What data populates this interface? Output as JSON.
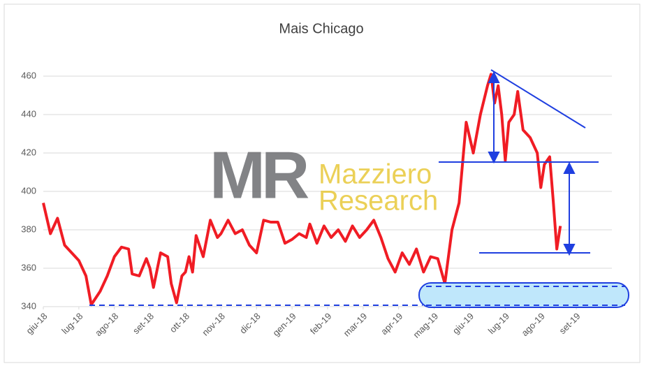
{
  "chart_data": {
    "type": "line",
    "title": "Mais Chicago",
    "watermark": {
      "logo": "MR",
      "line1": "Mazziero",
      "line2": "Research"
    },
    "xlim": [
      0,
      16
    ],
    "xticks": [
      {
        "value": 0,
        "label": "giu-18"
      },
      {
        "value": 1,
        "label": "lug-18"
      },
      {
        "value": 2,
        "label": "ago-18"
      },
      {
        "value": 3,
        "label": "set-18"
      },
      {
        "value": 4,
        "label": "ott-18"
      },
      {
        "value": 5,
        "label": "nov-18"
      },
      {
        "value": 6,
        "label": "dic-18"
      },
      {
        "value": 7,
        "label": "gen-19"
      },
      {
        "value": 8,
        "label": "feb-19"
      },
      {
        "value": 9,
        "label": "mar-19"
      },
      {
        "value": 10,
        "label": "apr-19"
      },
      {
        "value": 11,
        "label": "mag-19"
      },
      {
        "value": 12,
        "label": "giu-19"
      },
      {
        "value": 13,
        "label": "lug-19"
      },
      {
        "value": 14,
        "label": "ago-19"
      },
      {
        "value": 15,
        "label": "set-19"
      }
    ],
    "ylim": [
      340,
      465
    ],
    "yticks": [
      340,
      360,
      380,
      400,
      420,
      440,
      460
    ],
    "grid": true,
    "x": [
      0,
      0.2,
      0.4,
      0.6,
      0.8,
      1.0,
      1.2,
      1.35,
      1.6,
      1.8,
      2.0,
      2.2,
      2.4,
      2.5,
      2.7,
      2.9,
      3.0,
      3.1,
      3.3,
      3.5,
      3.6,
      3.75,
      3.9,
      4.0,
      4.1,
      4.2,
      4.3,
      4.5,
      4.7,
      4.9,
      5.0,
      5.2,
      5.4,
      5.6,
      5.8,
      6.0,
      6.2,
      6.4,
      6.6,
      6.8,
      7.0,
      7.2,
      7.4,
      7.5,
      7.7,
      7.9,
      8.1,
      8.3,
      8.5,
      8.7,
      8.9,
      9.1,
      9.3,
      9.5,
      9.7,
      9.9,
      10.1,
      10.3,
      10.5,
      10.7,
      10.9,
      11.1,
      11.3,
      11.5,
      11.7,
      11.9,
      12.1,
      12.3,
      12.5,
      12.6,
      12.7,
      12.8,
      12.9,
      13.0,
      13.1,
      13.25,
      13.35,
      13.5,
      13.7,
      13.9,
      14.0,
      14.1,
      14.25,
      14.35,
      14.45,
      14.55
    ],
    "series": [
      {
        "name": "Mais Chicago",
        "color": "#f01c24",
        "values": [
          394,
          378,
          386,
          372,
          368,
          364,
          356,
          341,
          348,
          356,
          366,
          371,
          370,
          357,
          356,
          365,
          360,
          350,
          368,
          366,
          352,
          342,
          356,
          358,
          366,
          358,
          377,
          366,
          385,
          376,
          378,
          385,
          378,
          380,
          372,
          368,
          385,
          384,
          384,
          373,
          375,
          378,
          376,
          383,
          373,
          382,
          376,
          380,
          374,
          382,
          376,
          380,
          385,
          376,
          365,
          358,
          368,
          362,
          370,
          358,
          366,
          365,
          352,
          380,
          394,
          436,
          420,
          440,
          455,
          461,
          446,
          455,
          440,
          416,
          436,
          440,
          452,
          432,
          428,
          420,
          402,
          414,
          418,
          395,
          370,
          382
        ]
      }
    ]
  }
}
